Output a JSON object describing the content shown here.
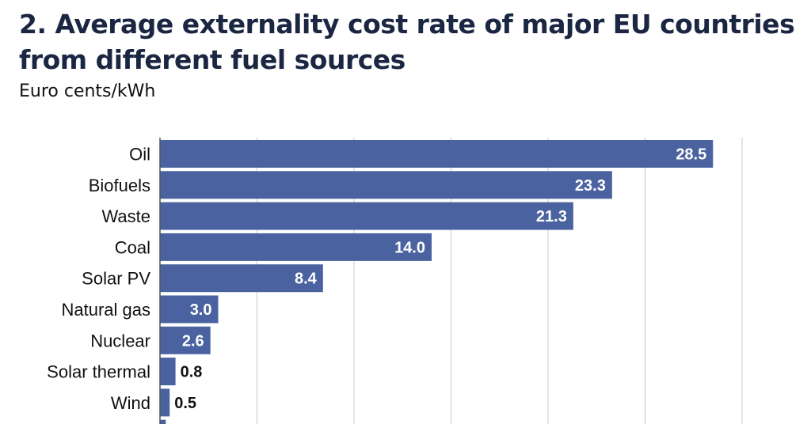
{
  "chart_data": {
    "type": "bar",
    "orientation": "horizontal",
    "title": "2. Average externality cost rate of major EU countries from different fuel sources",
    "subtitle": "Euro cents/kWh",
    "categories": [
      "Oil",
      "Biofuels",
      "Waste",
      "Coal",
      "Solar PV",
      "Natural gas",
      "Nuclear",
      "Solar thermal",
      "Wind",
      ""
    ],
    "values": [
      28.5,
      23.3,
      21.3,
      14.0,
      8.4,
      3.0,
      2.6,
      0.8,
      0.5,
      0.3
    ],
    "value_labels": [
      "28.5",
      "23.3",
      "21.3",
      "14.0",
      "8.4",
      "3.0",
      "2.6",
      "0.8",
      "0.5",
      ""
    ],
    "xlim": [
      0,
      30
    ],
    "grid": true,
    "bar_color": "#4a63a0",
    "title_color": "#1b2742"
  }
}
